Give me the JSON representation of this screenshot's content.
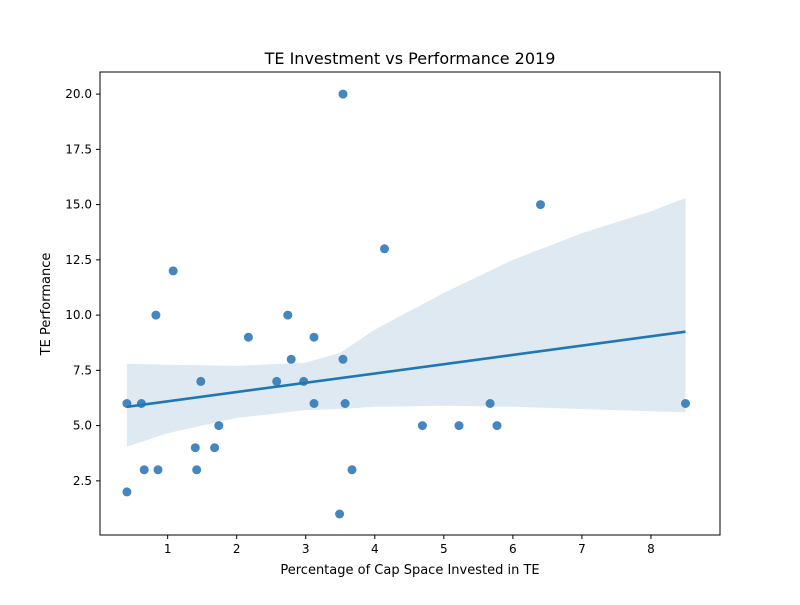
{
  "chart_data": {
    "type": "scatter",
    "title": "TE Investment vs Performance 2019",
    "xlabel": "Percentage of Cap Space Invested in TE",
    "ylabel": "TE Performance",
    "xlim": [
      0.02,
      9.0
    ],
    "ylim": [
      0.05,
      21.0
    ],
    "x_ticks": [
      1,
      2,
      3,
      4,
      5,
      6,
      7,
      8
    ],
    "y_ticks": [
      2.5,
      5.0,
      7.5,
      10.0,
      12.5,
      15.0,
      17.5,
      20.0
    ],
    "x_tick_labels": [
      "1",
      "2",
      "3",
      "4",
      "5",
      "6",
      "7",
      "8"
    ],
    "y_tick_labels": [
      "2.5",
      "5.0",
      "7.5",
      "10.0",
      "12.5",
      "15.0",
      "17.5",
      "20.0"
    ],
    "grid": false,
    "series": [
      {
        "points": [
          {
            "x": 0.41,
            "y": 6
          },
          {
            "x": 0.41,
            "y": 2
          },
          {
            "x": 0.62,
            "y": 6
          },
          {
            "x": 0.66,
            "y": 3
          },
          {
            "x": 0.83,
            "y": 10
          },
          {
            "x": 0.86,
            "y": 3
          },
          {
            "x": 1.08,
            "y": 12
          },
          {
            "x": 1.4,
            "y": 4
          },
          {
            "x": 1.42,
            "y": 3
          },
          {
            "x": 1.48,
            "y": 7
          },
          {
            "x": 1.68,
            "y": 4
          },
          {
            "x": 1.74,
            "y": 5
          },
          {
            "x": 2.17,
            "y": 9
          },
          {
            "x": 2.58,
            "y": 7
          },
          {
            "x": 2.74,
            "y": 10
          },
          {
            "x": 2.79,
            "y": 8
          },
          {
            "x": 2.97,
            "y": 7
          },
          {
            "x": 3.12,
            "y": 9
          },
          {
            "x": 3.12,
            "y": 6
          },
          {
            "x": 3.49,
            "y": 1
          },
          {
            "x": 3.54,
            "y": 20
          },
          {
            "x": 3.54,
            "y": 8
          },
          {
            "x": 3.57,
            "y": 6
          },
          {
            "x": 3.67,
            "y": 3
          },
          {
            "x": 4.14,
            "y": 13
          },
          {
            "x": 4.69,
            "y": 5
          },
          {
            "x": 5.22,
            "y": 5
          },
          {
            "x": 5.67,
            "y": 6
          },
          {
            "x": 5.77,
            "y": 5
          },
          {
            "x": 6.4,
            "y": 15
          },
          {
            "x": 8.5,
            "y": 6
          }
        ]
      }
    ],
    "regression": {
      "x": [
        0.41,
        8.5
      ],
      "y": [
        5.85,
        9.25
      ]
    },
    "confidence_band": {
      "x": [
        0.41,
        1.0,
        2.0,
        3.0,
        3.5,
        4.0,
        5.0,
        6.0,
        7.0,
        8.0,
        8.5
      ],
      "upper": [
        7.8,
        7.75,
        7.7,
        7.85,
        8.3,
        9.35,
        11.0,
        12.5,
        13.7,
        14.7,
        15.3
      ],
      "lower": [
        4.05,
        4.65,
        5.35,
        5.7,
        5.75,
        5.85,
        5.9,
        5.85,
        5.75,
        5.65,
        5.6
      ]
    },
    "colors": {
      "point": "#3a7fb9",
      "line": "#1f77b4",
      "band": "#dbe7f1",
      "axes": "#000000"
    }
  }
}
